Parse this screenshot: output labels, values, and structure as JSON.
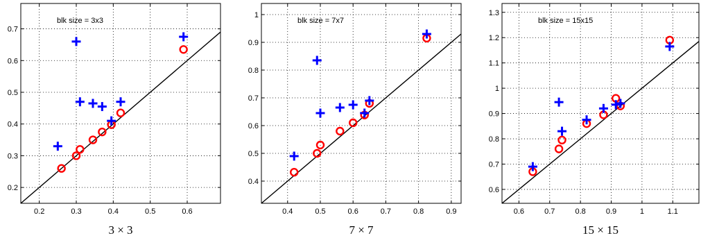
{
  "colors": {
    "circle_series": "#ff0000",
    "plus_series": "#0000ff",
    "reference_line": "#000000"
  },
  "chart_data": [
    {
      "type": "scatter",
      "xlabel": "3 × 3",
      "annotation": "blk size = 3x3",
      "xlim": [
        0.15,
        0.69
      ],
      "ylim": [
        0.15,
        0.78
      ],
      "xticks": [
        0.2,
        0.3,
        0.4,
        0.5,
        0.6
      ],
      "yticks": [
        0.2,
        0.3,
        0.4,
        0.5,
        0.6,
        0.7
      ],
      "xtick_labels": [
        "0.2",
        "0.3",
        "0.4",
        "0.5",
        "0.6"
      ],
      "ytick_labels": [
        "0.2",
        "0.3",
        "0.4",
        "0.5",
        "0.6",
        "0.7"
      ],
      "grid": true,
      "reference_line": "y = x",
      "series": [
        {
          "marker": "circle",
          "x": [
            0.26,
            0.3,
            0.31,
            0.345,
            0.37,
            0.395,
            0.42,
            0.59
          ],
          "y": [
            0.26,
            0.3,
            0.32,
            0.35,
            0.375,
            0.398,
            0.435,
            0.635
          ]
        },
        {
          "marker": "plus",
          "x": [
            0.25,
            0.3,
            0.31,
            0.345,
            0.37,
            0.395,
            0.42,
            0.59
          ],
          "y": [
            0.33,
            0.66,
            0.47,
            0.465,
            0.455,
            0.41,
            0.47,
            0.675
          ]
        }
      ]
    },
    {
      "type": "scatter",
      "xlabel": "7 × 7",
      "annotation": "blk size = 7x7",
      "xlim": [
        0.32,
        0.93
      ],
      "ylim": [
        0.32,
        1.04
      ],
      "xticks": [
        0.4,
        0.5,
        0.6,
        0.7,
        0.8,
        0.9
      ],
      "yticks": [
        0.4,
        0.5,
        0.6,
        0.7,
        0.8,
        0.9,
        1.0
      ],
      "xtick_labels": [
        "0.4",
        "0.5",
        "0.6",
        "0.7",
        "0.8",
        "0.9"
      ],
      "ytick_labels": [
        "0.4",
        "0.5",
        "0.6",
        "0.7",
        "0.8",
        "0.9",
        "1"
      ],
      "grid": true,
      "reference_line": "y = x",
      "series": [
        {
          "marker": "circle",
          "x": [
            0.42,
            0.49,
            0.5,
            0.56,
            0.6,
            0.635,
            0.65,
            0.825
          ],
          "y": [
            0.432,
            0.5,
            0.53,
            0.58,
            0.61,
            0.638,
            0.68,
            0.915
          ]
        },
        {
          "marker": "plus",
          "x": [
            0.42,
            0.49,
            0.5,
            0.56,
            0.6,
            0.635,
            0.65,
            0.825
          ],
          "y": [
            0.49,
            0.835,
            0.645,
            0.665,
            0.675,
            0.645,
            0.69,
            0.93
          ]
        }
      ]
    },
    {
      "type": "scatter",
      "xlabel": "15 × 15",
      "annotation": "blk size = 15x15",
      "xlim": [
        0.545,
        1.185
      ],
      "ylim": [
        0.545,
        1.335
      ],
      "xticks": [
        0.6,
        0.7,
        0.8,
        0.9,
        1.0,
        1.1
      ],
      "yticks": [
        0.6,
        0.7,
        0.8,
        0.9,
        1.0,
        1.1,
        1.2,
        1.3
      ],
      "xtick_labels": [
        "0.6",
        "0.7",
        "0.8",
        "0.9",
        "1",
        "1.1"
      ],
      "ytick_labels": [
        "0.6",
        "0.7",
        "0.8",
        "0.9",
        "1",
        "1.1",
        "1.2",
        "1.3"
      ],
      "grid": true,
      "reference_line": "y = x",
      "series": [
        {
          "marker": "circle",
          "x": [
            0.645,
            0.73,
            0.74,
            0.82,
            0.875,
            0.915,
            0.93,
            1.09
          ],
          "y": [
            0.67,
            0.76,
            0.795,
            0.86,
            0.895,
            0.96,
            0.93,
            1.19
          ]
        },
        {
          "marker": "plus",
          "x": [
            0.645,
            0.73,
            0.74,
            0.82,
            0.875,
            0.915,
            0.93,
            1.09
          ],
          "y": [
            0.69,
            0.945,
            0.83,
            0.875,
            0.92,
            0.935,
            0.94,
            1.165
          ]
        }
      ]
    }
  ]
}
